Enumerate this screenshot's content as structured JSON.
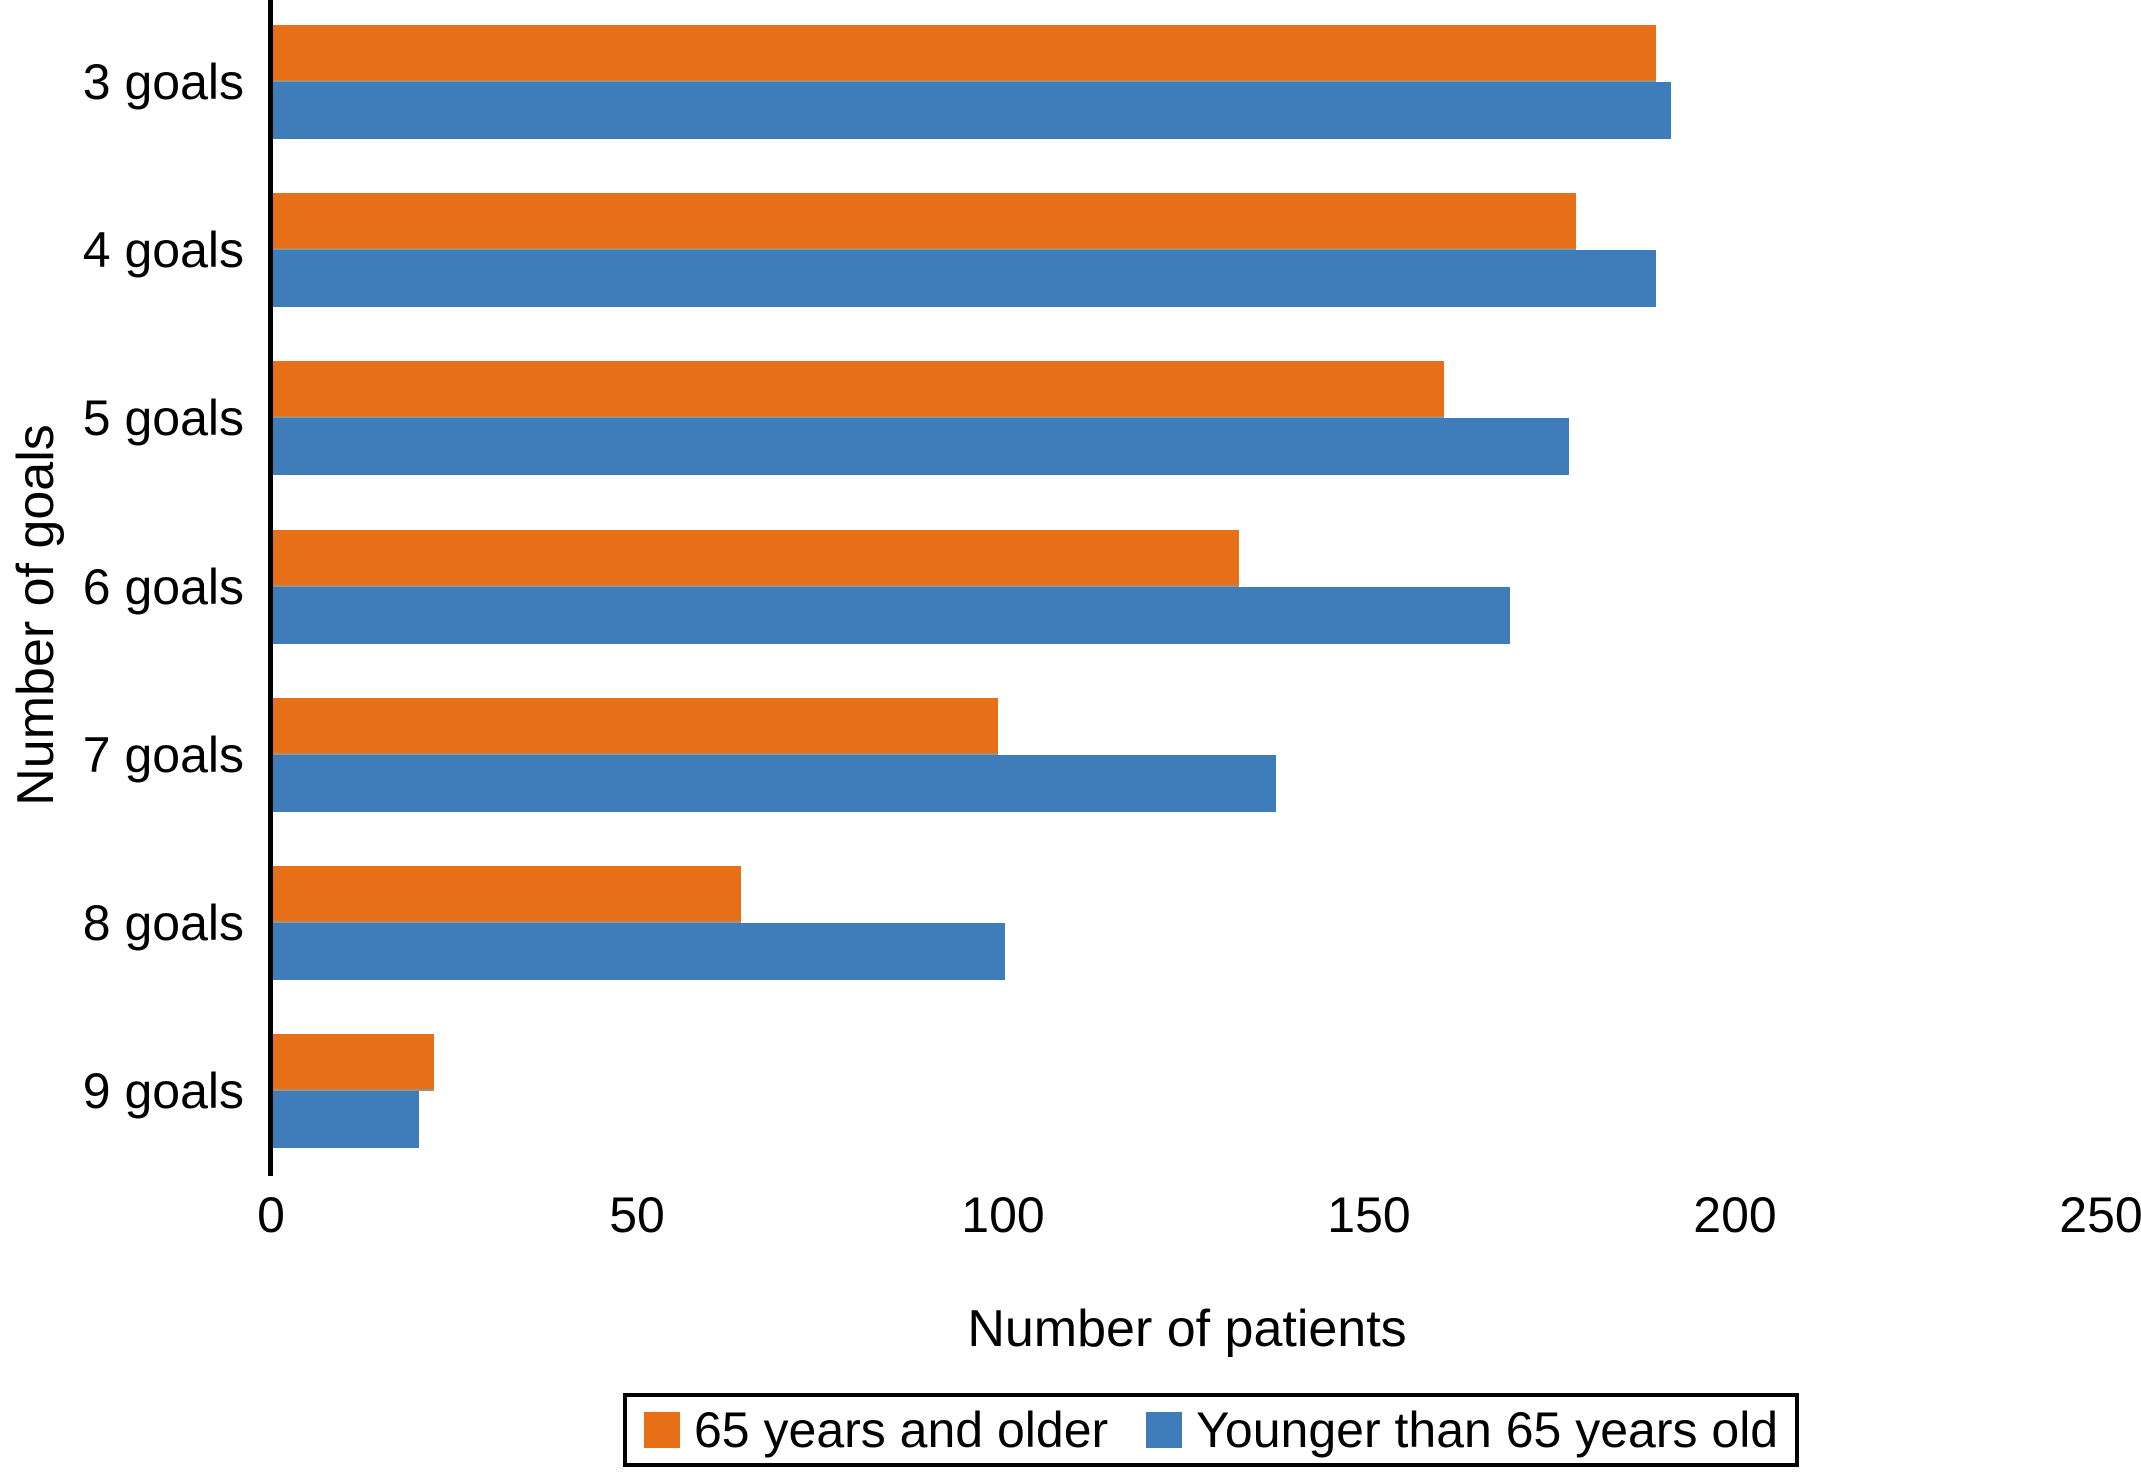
{
  "chart_data": {
    "type": "bar",
    "orientation": "horizontal",
    "categories": [
      "3 goals",
      "4 goals",
      "5 goals",
      "6 goals",
      "7 goals",
      "8 goals",
      "9 goals"
    ],
    "series": [
      {
        "name": "65 years and older",
        "color": "#E76F18",
        "values": [
          189,
          178,
          160,
          132,
          99,
          64,
          22
        ]
      },
      {
        "name": "Younger than 65 years old",
        "color": "#3E7DB9",
        "values": [
          191,
          189,
          177,
          169,
          137,
          100,
          20
        ]
      }
    ],
    "xlabel": "Number of patients",
    "ylabel": "Number of goals",
    "xlim": [
      0,
      250
    ],
    "x_ticks": [
      "0",
      "50",
      "100",
      "150",
      "200",
      "250"
    ],
    "grid": false,
    "legend_position": "bottom",
    "legend_border": true,
    "axis_color": "#000000",
    "background_color": "#FFFFFF"
  }
}
